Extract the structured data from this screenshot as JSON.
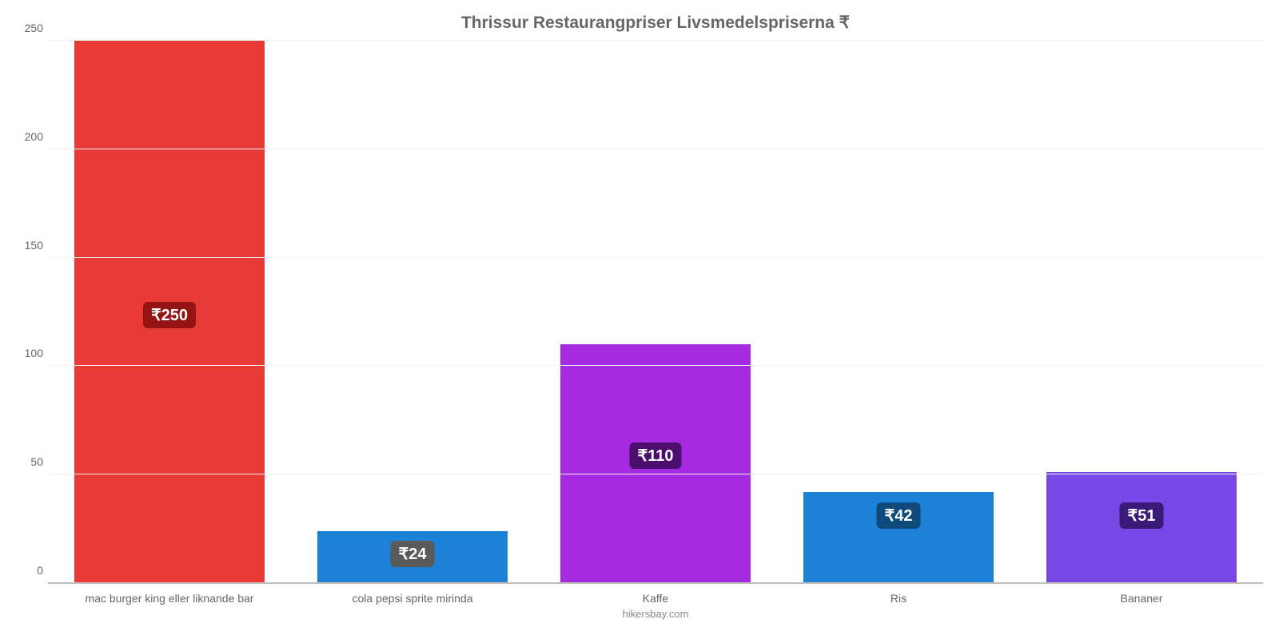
{
  "chart": {
    "type": "bar",
    "title": "Thrissur Restaurangpriser Livsmedelspriserna ₹",
    "title_fontsize": 21,
    "title_color": "#666666",
    "footer": "hikersbay.com",
    "footer_color": "#888888",
    "background_color": "#ffffff",
    "grid_color": "#f3f3f3",
    "axis_color": "#c0c0c0",
    "tick_label_color": "#666666",
    "tick_fontsize": 14,
    "ylim": [
      0,
      250
    ],
    "ytick_step": 50,
    "yticks": [
      0,
      50,
      100,
      150,
      200,
      250
    ],
    "bar_width_pct": 78,
    "categories": [
      "mac burger king eller liknande bar",
      "cola pepsi sprite mirinda",
      "Kaffe",
      "Ris",
      "Bananer"
    ],
    "values": [
      250,
      24,
      110,
      42,
      51
    ],
    "value_labels": [
      "₹250",
      "₹24",
      "₹110",
      "₹42",
      "₹51"
    ],
    "bar_colors": [
      "#e83a36",
      "#1d81d7",
      "#a52ae0",
      "#1d81d7",
      "#7947e5"
    ],
    "badge_bg_colors": [
      "#951313",
      "#5a5a5a",
      "#4b0e6e",
      "#0f4a7c",
      "#3a1a78"
    ],
    "badge_text_color": "#ffffff",
    "badge_fontsize": 20,
    "badge_positions_pct_from_bottom": [
      47,
      3,
      21,
      10,
      10
    ]
  }
}
